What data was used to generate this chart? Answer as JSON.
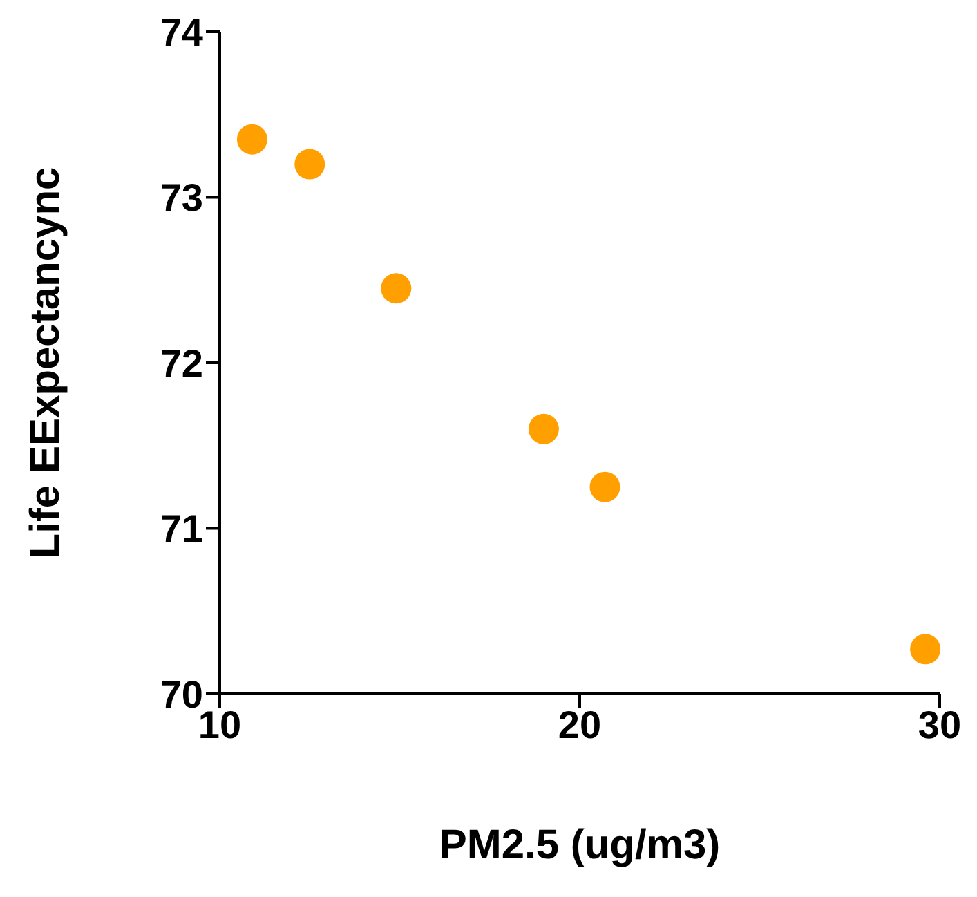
{
  "chart_data": {
    "type": "scatter",
    "xlabel": "PM2.5 (ug/m3)",
    "ylabel": "Life EExpectancync",
    "x": [
      10.9,
      12.5,
      14.9,
      19.0,
      20.7,
      29.6
    ],
    "series": [
      {
        "color": "#ff9f00",
        "values": [
          73.35,
          73.2,
          72.45,
          71.6,
          71.25,
          70.27
        ]
      }
    ],
    "xlim": [
      10,
      30
    ],
    "xticks": [
      10,
      20,
      30
    ],
    "ylim": [
      70,
      74
    ],
    "yticks": [
      70,
      71,
      72,
      73,
      74
    ],
    "grid": false,
    "legend": false,
    "marker": "circle"
  }
}
